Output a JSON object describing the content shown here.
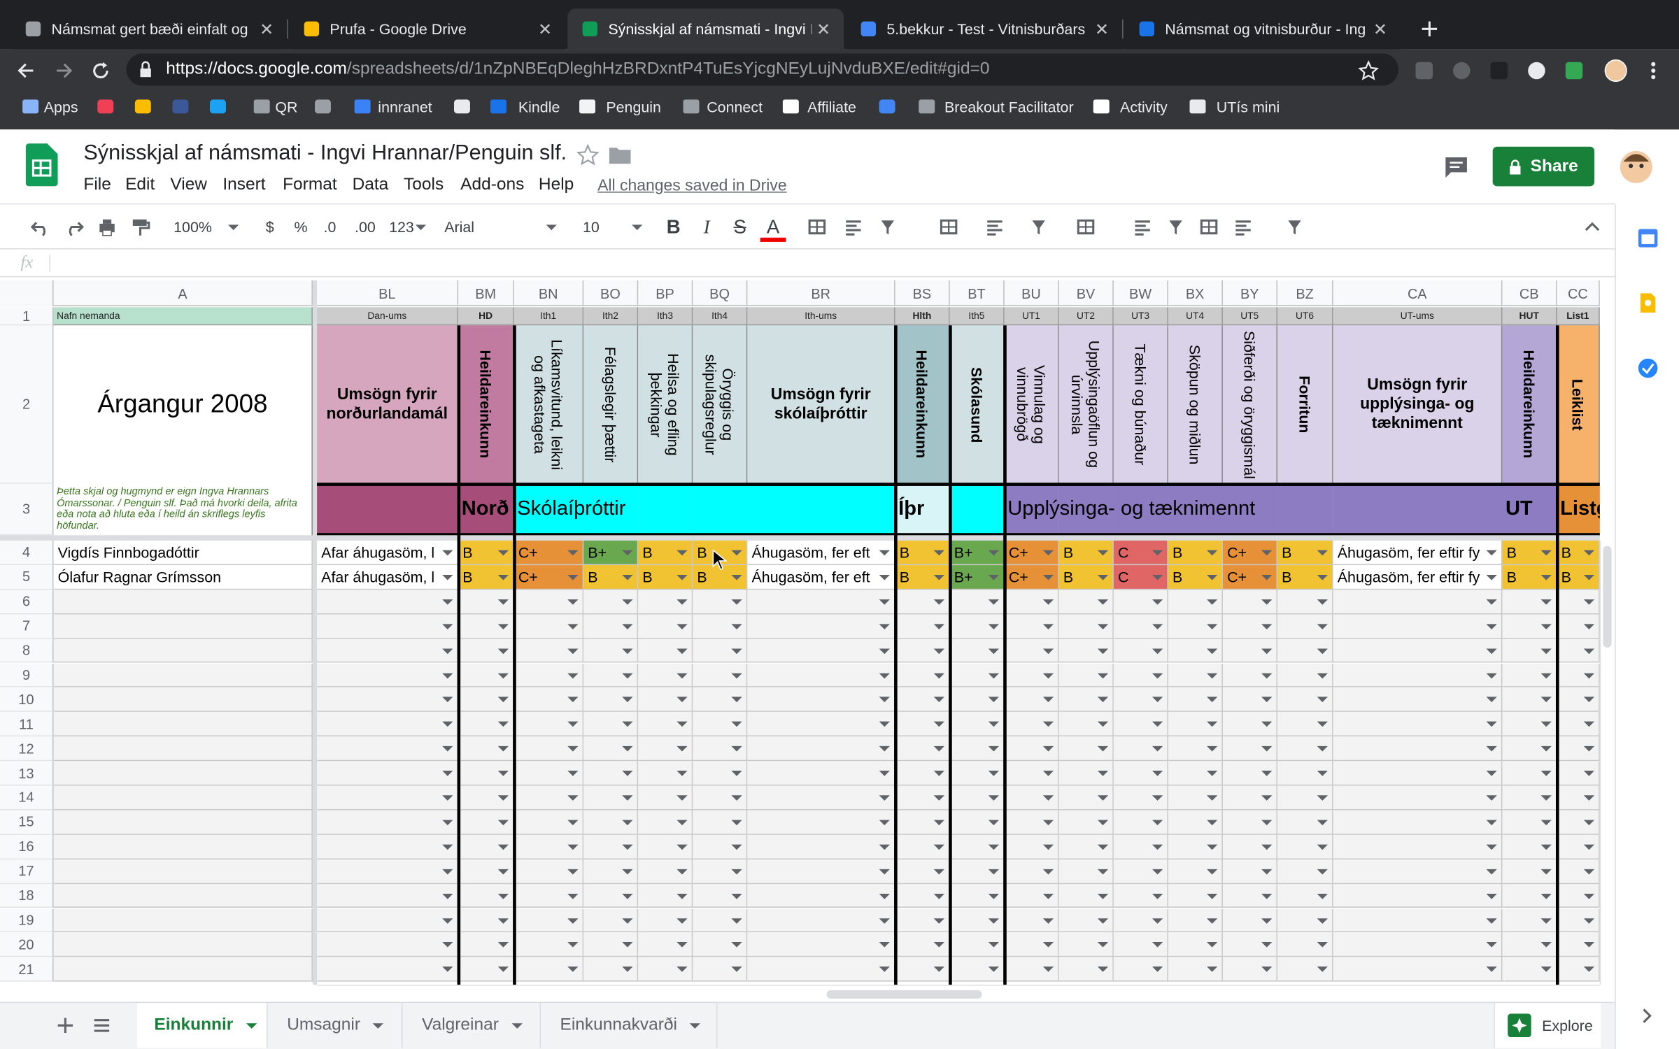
{
  "browser": {
    "tabs": [
      {
        "title": "Námsmat gert bæði einfalt og",
        "icon_color": "#9aa0a6"
      },
      {
        "title": "Prufa - Google Drive",
        "icon_color": "#fbbc04"
      },
      {
        "title": "Sýnisskjal af námsmati - Ingvi I",
        "icon_color": "#0f9d58"
      },
      {
        "title": "5.bekkur - Test - Vitnisburðars",
        "icon_color": "#4285f4"
      },
      {
        "title": "Námsmat og vitnisburður - Ing",
        "icon_color": "#1a73e8"
      }
    ],
    "active_tab": 2,
    "url_host": "https://docs.google.com",
    "url_path": "/spreadsheets/d/1nZpNBEqDleghHzBRDxntP4TuEsYjcgNEyLujNvduBXE/edit#gid=0",
    "bookmarks": [
      "Apps",
      "QR",
      "innranet",
      "Kindle",
      "Penguin",
      "Connect",
      "Affiliate",
      "Breakout Facilitator",
      "Activity",
      "UTís mini"
    ]
  },
  "header": {
    "title": "Sýnisskjal af námsmati - Ingvi Hrannar/Penguin slf.",
    "menu": [
      "File",
      "Edit",
      "View",
      "Insert",
      "Format",
      "Data",
      "Tools",
      "Add-ons",
      "Help"
    ],
    "saved_status": "All changes saved in Drive",
    "share": "Share"
  },
  "toolbar": {
    "zoom": "100%",
    "currency": "$",
    "percent": "%",
    "decrease_decimals": ".0",
    "increase_decimals": ".00",
    "more_formats": "123",
    "font": "Arial",
    "font_size": "10",
    "bold": "B",
    "italic": "I",
    "strikethrough": "S",
    "text_color": "A",
    "formula_label": "fx"
  },
  "grade_colors": {
    "B": "#f1c232",
    "B+": "#6aa84f",
    "C+": "#e69138",
    "C": "#e06666"
  },
  "columns": [
    {
      "letter": "A",
      "code": "Nafn nemanda",
      "code_color": "#b7e1cd",
      "code_bold": false,
      "header": "Árgangur 2008",
      "rotated": false,
      "header_color": "#ffffff",
      "group_label": "Þetta skjal og hugmynd er eign Ingva Hrannars Ómarssonar. / Penguin slf. Það má hvorki deila, afrita eða nota að hluta eða í heild án skriflegs leyfis höfundar.",
      "group_color": "#ffffff",
      "group_bold": false,
      "thick_left": false
    },
    {
      "letter": "BL",
      "code": "Dan-ums",
      "code_color": "#cccccc",
      "code_bold": false,
      "header": "Umsögn fyrir norðurlandamál",
      "rotated": false,
      "header_color": "#d5a6bd",
      "group_label": null,
      "group_color": "#a64d79",
      "group_bold": false,
      "thick_left": false
    },
    {
      "letter": "BM",
      "code": "HD",
      "code_color": "#cccccc",
      "code_bold": true,
      "header": "Heildareinkunn",
      "rotated": true,
      "header_color": "#c27ba0",
      "group_label": "Norð",
      "group_color": "#a64d79",
      "group_bold": true,
      "thick_left": true
    },
    {
      "letter": "BN",
      "code": "Ith1",
      "code_color": "#cccccc",
      "code_bold": false,
      "header": "Líkamsvitund, leikni og afkastageta",
      "rotated": true,
      "header_color": "#d0e0e3",
      "group_label": "Skólaíþróttir",
      "group_color": "#00ffff",
      "group_bold": false,
      "thick_left": true
    },
    {
      "letter": "BO",
      "code": "Ith2",
      "code_color": "#cccccc",
      "code_bold": false,
      "header": "Félagslegir þættir",
      "rotated": true,
      "header_color": "#d0e0e3",
      "group_label": null,
      "group_color": "#00ffff",
      "group_bold": false,
      "thick_left": false
    },
    {
      "letter": "BP",
      "code": "Ith3",
      "code_color": "#cccccc",
      "code_bold": false,
      "header": "Heilsa og efling þekkingar",
      "rotated": true,
      "header_color": "#d0e0e3",
      "group_label": null,
      "group_color": "#00ffff",
      "group_bold": false,
      "thick_left": false
    },
    {
      "letter": "BQ",
      "code": "Ith4",
      "code_color": "#cccccc",
      "code_bold": false,
      "header": "Öryggis og skipulagsreglur",
      "rotated": true,
      "header_color": "#d0e0e3",
      "group_label": null,
      "group_color": "#00ffff",
      "group_bold": false,
      "thick_left": false
    },
    {
      "letter": "BR",
      "code": "Ith-ums",
      "code_color": "#cccccc",
      "code_bold": false,
      "header": "Umsögn fyrir skólaíþróttir",
      "rotated": false,
      "header_color": "#d0e0e3",
      "group_label": null,
      "group_color": "#00ffff",
      "group_bold": false,
      "thick_left": false
    },
    {
      "letter": "BS",
      "code": "Hlth",
      "code_color": "#cccccc",
      "code_bold": true,
      "header": "Heildareinkunn",
      "rotated": true,
      "header_color": "#a2c4c9",
      "group_label": "Íþr",
      "group_color": "#d8f4f7",
      "group_bold": true,
      "thick_left": true
    },
    {
      "letter": "BT",
      "code": "Ith5",
      "code_color": "#cccccc",
      "code_bold": false,
      "header": "Skólasund",
      "rotated": true,
      "header_color": "#d0e0e3",
      "group_label": null,
      "group_color": "#00ffff",
      "group_bold": false,
      "thick_left": true
    },
    {
      "letter": "BU",
      "code": "UT1",
      "code_color": "#cccccc",
      "code_bold": false,
      "header": "Vinnulag og vinnubrögð",
      "rotated": true,
      "header_color": "#d9d2e9",
      "group_label": "Upplýsinga- og tæknimennt",
      "group_color": "#8e7cc3",
      "group_bold": false,
      "thick_left": true
    },
    {
      "letter": "BV",
      "code": "UT2",
      "code_color": "#cccccc",
      "code_bold": false,
      "header": "Upplýsingaöflun og úrvinnsla",
      "rotated": true,
      "header_color": "#d9d2e9",
      "group_label": null,
      "group_color": "#8e7cc3",
      "group_bold": false,
      "thick_left": false
    },
    {
      "letter": "BW",
      "code": "UT3",
      "code_color": "#cccccc",
      "code_bold": false,
      "header": "Tækni og búnaður",
      "rotated": true,
      "header_color": "#d9d2e9",
      "group_label": null,
      "group_color": "#8e7cc3",
      "group_bold": false,
      "thick_left": false
    },
    {
      "letter": "BX",
      "code": "UT4",
      "code_color": "#cccccc",
      "code_bold": false,
      "header": "Sköpun og miðlun",
      "rotated": true,
      "header_color": "#d9d2e9",
      "group_label": null,
      "group_color": "#8e7cc3",
      "group_bold": false,
      "thick_left": false
    },
    {
      "letter": "BY",
      "code": "UT5",
      "code_color": "#cccccc",
      "code_bold": false,
      "header": "Siðferði og öryggismál",
      "rotated": true,
      "header_color": "#d9d2e9",
      "group_label": null,
      "group_color": "#8e7cc3",
      "group_bold": false,
      "thick_left": false
    },
    {
      "letter": "BZ",
      "code": "UT6",
      "code_color": "#cccccc",
      "code_bold": false,
      "header": "Forritun",
      "rotated": true,
      "header_color": "#d9d2e9",
      "group_label": null,
      "group_color": "#8e7cc3",
      "group_bold": false,
      "thick_left": false
    },
    {
      "letter": "CA",
      "code": "UT-ums",
      "code_color": "#cccccc",
      "code_bold": false,
      "header": "Umsögn fyrir upplýsinga- og tæknimennt",
      "rotated": false,
      "header_color": "#d9d2e9",
      "group_label": null,
      "group_color": "#8e7cc3",
      "group_bold": false,
      "thick_left": false
    },
    {
      "letter": "CB",
      "code": "HUT",
      "code_color": "#cccccc",
      "code_bold": true,
      "header": "Heildareinkunn",
      "rotated": true,
      "header_color": "#b4a7d6",
      "group_label": "UT",
      "group_color": "#8e7cc3",
      "group_bold": true,
      "thick_left": false
    },
    {
      "letter": "CC",
      "code": "List1",
      "code_color": "#cccccc",
      "code_bold": true,
      "header": "Leiklist",
      "rotated": true,
      "header_color": "#f6b26b",
      "group_label": "Listg",
      "group_color": "#e69138",
      "group_bold": true,
      "thick_left": true
    }
  ],
  "rows": [
    [
      "Vigdís Finnbogadóttir",
      "Afar áhugasöm, l",
      "B",
      "C+",
      "B+",
      "B",
      "B",
      "Áhugasöm, fer eft",
      "B",
      "B+",
      "C+",
      "B",
      "C",
      "B",
      "C+",
      "B",
      "Áhugasöm, fer eftir fy",
      "B",
      "B"
    ],
    [
      "Ólafur Ragnar Grímsson",
      "Afar áhugasöm, l",
      "B",
      "C+",
      "B",
      "B",
      "B",
      "Áhugasöm, fer eft",
      "B",
      "B+",
      "C+",
      "B",
      "C",
      "B",
      "C+",
      "B",
      "Áhugasöm, fer eftir fy",
      "B",
      "B"
    ]
  ],
  "row_numbers": [
    1,
    2,
    3,
    4,
    5,
    6,
    7,
    8,
    9,
    10,
    11,
    12,
    13,
    14,
    15,
    16,
    17,
    18,
    19,
    20,
    21
  ],
  "sheet_tabs": [
    "Einkunnir",
    "Umsagnir",
    "Valgreinar",
    "Einkunnakvarði"
  ],
  "active_sheet": 0,
  "explore": "Explore"
}
